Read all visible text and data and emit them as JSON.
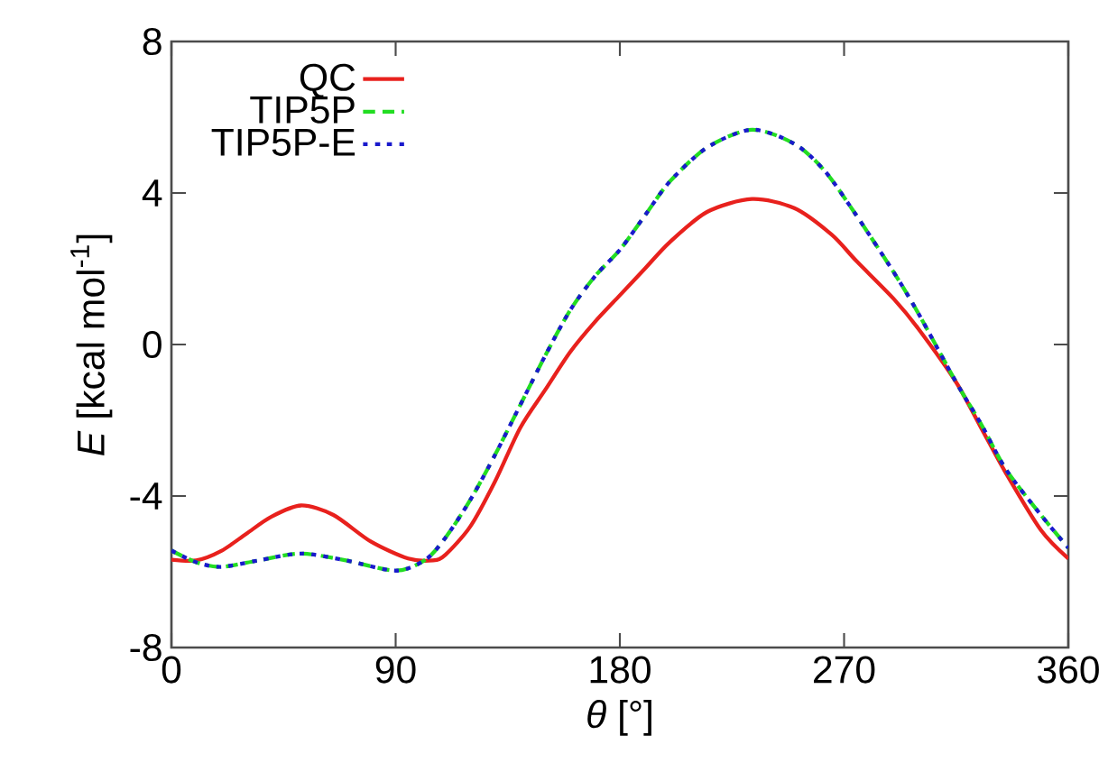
{
  "chart_data": {
    "type": "line",
    "xlabel": "*θ* [°]",
    "ylabel": "*E* [kcal mol$^{-1}$]",
    "xlim": [
      0,
      360
    ],
    "ylim": [
      -8,
      8
    ],
    "xticks": [
      0,
      90,
      180,
      270,
      360
    ],
    "yticks": [
      -8,
      -4,
      0,
      4,
      8
    ],
    "grid": false,
    "legend": "top left",
    "marker": "none",
    "series": [
      {
        "name": "QC",
        "color": "#e8211d",
        "line_style": "solid",
        "x": [
          0,
          10,
          20,
          30,
          40,
          52,
          65,
          80,
          95,
          105,
          110,
          120,
          130,
          140,
          150,
          160,
          170,
          180,
          190,
          200,
          215,
          233,
          250,
          265,
          275,
          290,
          300,
          315,
          325,
          335,
          349,
          360
        ],
        "values": [
          -5.68,
          -5.7,
          -5.45,
          -5.0,
          -4.55,
          -4.25,
          -4.5,
          -5.2,
          -5.65,
          -5.7,
          -5.55,
          -4.8,
          -3.6,
          -2.2,
          -1.2,
          -0.2,
          0.6,
          1.3,
          2.0,
          2.7,
          3.5,
          3.84,
          3.6,
          2.9,
          2.2,
          1.2,
          0.4,
          -1.0,
          -2.2,
          -3.4,
          -4.9,
          -5.65
        ]
      },
      {
        "name": "TIP5P",
        "color": "#22dd22",
        "line_style": "dashed",
        "x": [
          0,
          10,
          20,
          35,
          52,
          70,
          90,
          102,
          110,
          120,
          130,
          140,
          150,
          160,
          170,
          180,
          190,
          200,
          215,
          233,
          250,
          262,
          274,
          290,
          300,
          315,
          325,
          335,
          349,
          360
        ],
        "values": [
          -5.44,
          -5.75,
          -5.87,
          -5.7,
          -5.52,
          -5.7,
          -5.97,
          -5.68,
          -5.1,
          -4.1,
          -2.9,
          -1.6,
          -0.3,
          0.9,
          1.8,
          2.5,
          3.4,
          4.3,
          5.2,
          5.67,
          5.3,
          4.6,
          3.5,
          1.9,
          0.8,
          -1.0,
          -2.1,
          -3.3,
          -4.5,
          -5.37
        ]
      },
      {
        "name": "TIP5P-E",
        "color": "#1a1acc",
        "line_style": "dotted",
        "x": [
          0,
          10,
          20,
          35,
          52,
          70,
          90,
          102,
          110,
          120,
          130,
          140,
          150,
          160,
          170,
          180,
          190,
          200,
          215,
          233,
          250,
          262,
          274,
          290,
          300,
          315,
          325,
          335,
          349,
          360
        ],
        "values": [
          -5.44,
          -5.75,
          -5.87,
          -5.7,
          -5.52,
          -5.7,
          -5.97,
          -5.68,
          -5.1,
          -4.1,
          -2.9,
          -1.6,
          -0.3,
          0.9,
          1.8,
          2.5,
          3.4,
          4.3,
          5.2,
          5.67,
          5.3,
          4.6,
          3.5,
          1.9,
          0.8,
          -1.0,
          -2.1,
          -3.3,
          -4.5,
          -5.37
        ]
      }
    ]
  }
}
